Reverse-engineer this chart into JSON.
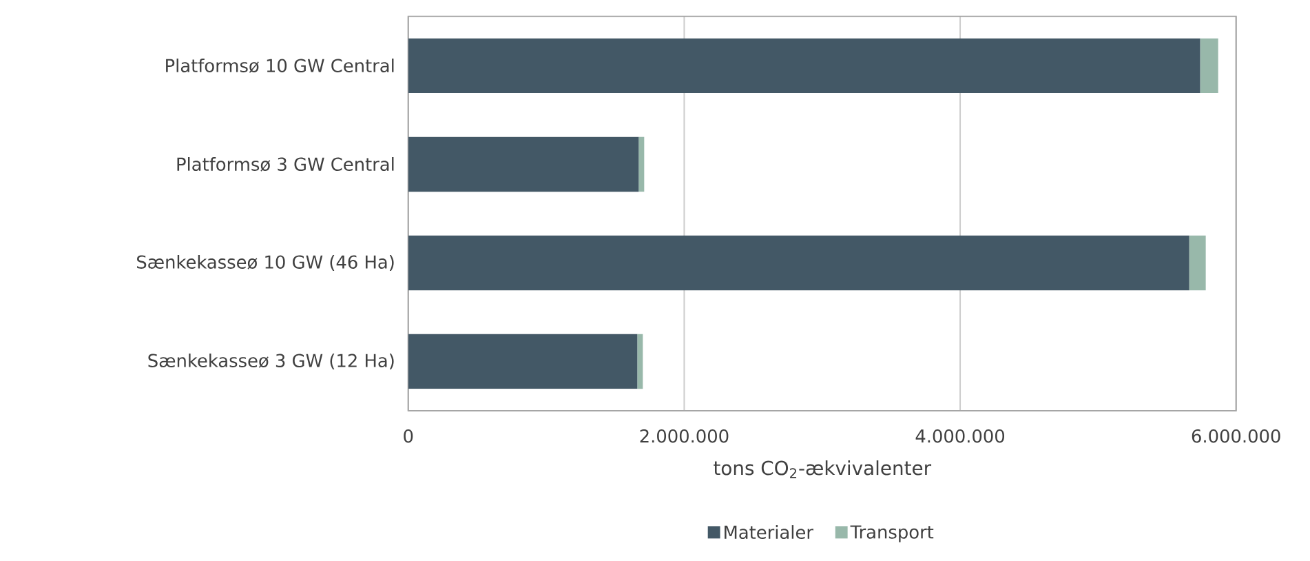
{
  "chart_data": {
    "type": "bar",
    "orientation": "horizontal",
    "stacked": true,
    "categories": [
      "Platformsø 10 GW Central",
      "Platformsø 3 GW Central",
      "Sænkekasseø 10 GW (46 Ha)",
      "Sænkekasseø 3 GW (12 Ha)"
    ],
    "series": [
      {
        "name": "Materialer",
        "color": "#435866",
        "values": [
          5740000,
          1670000,
          5660000,
          1660000
        ]
      },
      {
        "name": "Transport",
        "color": "#98b8aa",
        "values": [
          130000,
          40000,
          120000,
          40000
        ]
      }
    ],
    "xlabel": "tons CO$_{2}$-ækvivalenter",
    "xlim": [
      0,
      6000000
    ],
    "xticks": [
      0,
      {
        "value": 2000000,
        "label": "2.000.000"
      },
      {
        "value": 4000000,
        "label": "4.000.000"
      },
      {
        "value": 6000000,
        "label": "6.000.000"
      }
    ],
    "grid": "x",
    "legend": "bottom"
  }
}
